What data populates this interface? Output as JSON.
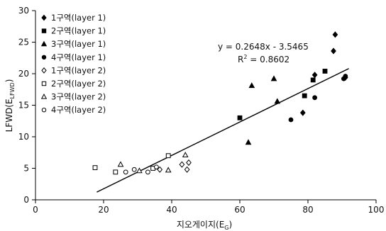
{
  "chart_data": {
    "type": "scatter",
    "xlabel": "지오게이지(E",
    "xlabel_sub": "G",
    "xlabel_close": ")",
    "ylabel": "LFWD(E",
    "ylabel_sub": "LFWD",
    "ylabel_close": ")",
    "xlim": [
      0,
      100
    ],
    "ylim": [
      0,
      30
    ],
    "xticks": [
      0,
      20,
      40,
      60,
      80,
      100
    ],
    "yticks": [
      0,
      5,
      10,
      15,
      20,
      25,
      30
    ],
    "grid": false,
    "legend_position": "top-left",
    "series": [
      {
        "name": "1구역(layer 1)",
        "marker": "diamond",
        "filled": true,
        "points": [
          [
            88,
            26.2
          ],
          [
            87.5,
            23.6
          ],
          [
            82,
            19.8
          ],
          [
            78.5,
            13.8
          ],
          [
            91,
            19.4
          ]
        ]
      },
      {
        "name": "2구역(layer 1)",
        "marker": "square",
        "filled": true,
        "points": [
          [
            60,
            13
          ],
          [
            79,
            16.5
          ],
          [
            81.5,
            19
          ],
          [
            85,
            20.4
          ]
        ]
      },
      {
        "name": "3구역(layer 1)",
        "marker": "triangle",
        "filled": true,
        "points": [
          [
            62.5,
            9.1
          ],
          [
            63.5,
            18.1
          ],
          [
            70,
            19.2
          ],
          [
            71,
            15.6
          ]
        ]
      },
      {
        "name": "4구역(layer 1)",
        "marker": "circle",
        "filled": true,
        "points": [
          [
            75,
            12.7
          ],
          [
            82,
            16.2
          ],
          [
            90.5,
            19.2
          ],
          [
            91,
            19.6
          ]
        ]
      },
      {
        "name": "1구역(layer 2)",
        "marker": "diamond",
        "filled": false,
        "points": [
          [
            43,
            5.6
          ],
          [
            44.5,
            4.8
          ],
          [
            45,
            5.9
          ],
          [
            36.5,
            4.8
          ]
        ]
      },
      {
        "name": "2구역(layer 2)",
        "marker": "square",
        "filled": false,
        "points": [
          [
            17.5,
            5.1
          ],
          [
            23.5,
            4.4
          ],
          [
            34.5,
            5
          ],
          [
            39,
            7
          ]
        ]
      },
      {
        "name": "3구역(layer 2)",
        "marker": "triangle",
        "filled": false,
        "points": [
          [
            25,
            5.6
          ],
          [
            30.5,
            4.6
          ],
          [
            39,
            4.7
          ],
          [
            44,
            7.1
          ]
        ]
      },
      {
        "name": "4구역(layer 2)",
        "marker": "circle",
        "filled": false,
        "points": [
          [
            26.5,
            4.4
          ],
          [
            29,
            4.8
          ],
          [
            33,
            4.4
          ],
          [
            35.5,
            5.2
          ]
        ]
      }
    ],
    "trendline": {
      "slope": 0.2648,
      "intercept": -3.5465,
      "x_range": [
        18,
        92
      ]
    },
    "equation_label": "y = 0.2648x - 3.5465",
    "r2_prefix": "R",
    "r2_sup": "2",
    "r2_value": " = 0.8602"
  }
}
